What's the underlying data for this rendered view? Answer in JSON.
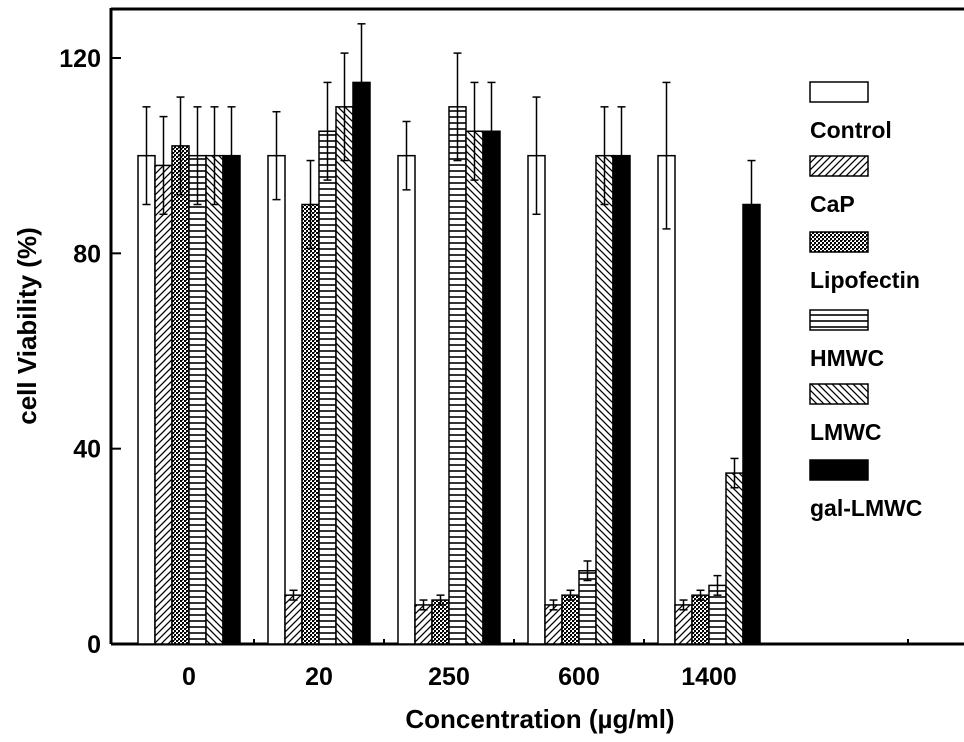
{
  "chart_data": {
    "type": "bar",
    "xlabel": "Concentration (µg/ml)",
    "ylabel": "cell Viability (%)",
    "ylim": [
      0,
      120
    ],
    "yticks": [
      0,
      40,
      80,
      120
    ],
    "categories": [
      "0",
      "20",
      "250",
      "600",
      "1400"
    ],
    "legend_position": "right",
    "series": [
      {
        "name": "Control",
        "pattern": "open",
        "values": [
          100,
          100,
          100,
          100,
          100
        ],
        "errors": [
          10,
          9,
          7,
          12,
          15
        ]
      },
      {
        "name": "CaP",
        "pattern": "forward-diagonal",
        "values": [
          98,
          10,
          8,
          8,
          8
        ],
        "errors": [
          10,
          1,
          1,
          1,
          1
        ]
      },
      {
        "name": "Lipofectin",
        "pattern": "crosshatch",
        "values": [
          102,
          90,
          9,
          10,
          10
        ],
        "errors": [
          10,
          9,
          1,
          1,
          1
        ]
      },
      {
        "name": "HMWC",
        "pattern": "horizontal",
        "values": [
          100,
          105,
          110,
          15,
          12
        ],
        "errors": [
          10,
          10,
          11,
          2,
          2
        ]
      },
      {
        "name": "LMWC",
        "pattern": "back-diagonal",
        "values": [
          100,
          110,
          105,
          100,
          35
        ],
        "errors": [
          10,
          11,
          10,
          10,
          3
        ]
      },
      {
        "name": "gal-LMWC",
        "pattern": "solid",
        "values": [
          100,
          115,
          105,
          100,
          90
        ],
        "errors": [
          10,
          12,
          10,
          10,
          9
        ]
      }
    ]
  }
}
